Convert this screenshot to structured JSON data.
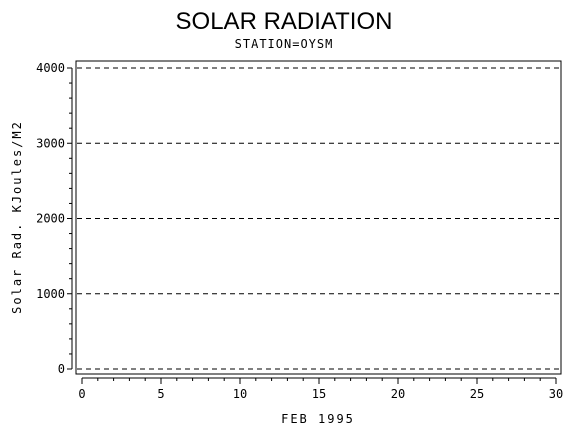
{
  "chart_data": {
    "type": "line",
    "title": "SOLAR RADIATION",
    "subtitle": "STATION=OYSM",
    "xlabel": "FEB 1995",
    "ylabel": "Solar Rad. KJoules/M2",
    "xlim": [
      0,
      30
    ],
    "ylim": [
      0,
      4000
    ],
    "x_ticks": [
      0,
      5,
      10,
      15,
      20,
      25,
      30
    ],
    "y_ticks": [
      0,
      1000,
      2000,
      3000,
      4000
    ],
    "x_minor_step": 1,
    "y_minor_step": 200,
    "grid": "horizontal dashed at major y ticks",
    "series": []
  }
}
